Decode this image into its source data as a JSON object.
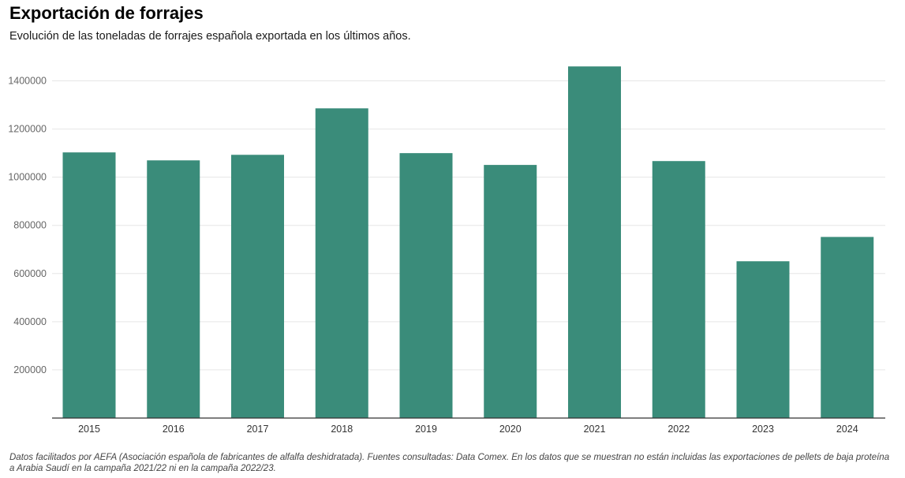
{
  "title": "Exportación de forrajes",
  "subtitle": "Evolución de las toneladas de forrajes española exportada en los últimos años.",
  "footnote": "Datos facilitados por AEFA (Asociación española de fabricantes de alfalfa deshidratada). Fuentes consultadas: Data Comex. En los datos que se muestran no están incluidas las exportaciones de pellets de baja proteína a Arabia Saudí en la campaña 2021/22 ni en la campaña 2022/23.",
  "colors": {
    "bar": "#3a8c7a",
    "grid": "#e6e6e6",
    "axis": "#333333"
  },
  "chart_data": {
    "type": "bar",
    "title": "Exportación de forrajes",
    "xlabel": "",
    "ylabel": "",
    "categories": [
      "2015",
      "2016",
      "2017",
      "2018",
      "2019",
      "2020",
      "2021",
      "2022",
      "2023",
      "2024"
    ],
    "values": [
      1103000,
      1070000,
      1093000,
      1286000,
      1100000,
      1051000,
      1460000,
      1067000,
      651000,
      752000
    ],
    "ylim": [
      0,
      1500000
    ],
    "yticks": [
      200000,
      400000,
      600000,
      800000,
      1000000,
      1200000,
      1400000
    ],
    "ytick_labels": [
      "200000",
      "400000",
      "600000",
      "800000",
      "1000000",
      "1200000",
      "1400000"
    ],
    "grid": true,
    "legend": "none"
  }
}
